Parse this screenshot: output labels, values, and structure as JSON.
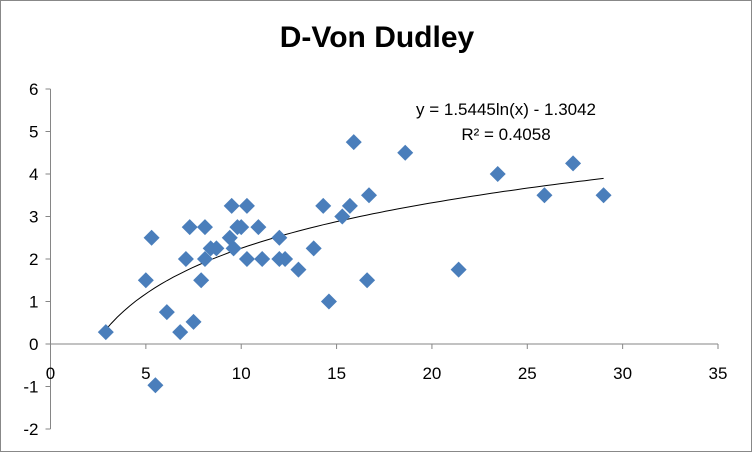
{
  "chart_data": {
    "type": "scatter",
    "title": "D-Von Dudley",
    "xlabel": "",
    "ylabel": "",
    "xlim": [
      0,
      35
    ],
    "ylim": [
      -2,
      6
    ],
    "x_ticks": [
      "0",
      "5",
      "10",
      "15",
      "20",
      "25",
      "30",
      "35"
    ],
    "y_ticks": [
      "-2",
      "-1",
      "0",
      "1",
      "2",
      "3",
      "4",
      "5",
      "6"
    ],
    "grid": false,
    "marker_color": "#4A7EBB",
    "series": [
      {
        "name": "D-Von Dudley",
        "points": [
          [
            2.9,
            0.28
          ],
          [
            5.0,
            1.5
          ],
          [
            5.3,
            2.5
          ],
          [
            5.5,
            -0.97
          ],
          [
            6.1,
            0.75
          ],
          [
            6.8,
            0.28
          ],
          [
            7.1,
            2.0
          ],
          [
            7.3,
            2.75
          ],
          [
            7.5,
            0.52
          ],
          [
            7.9,
            1.5
          ],
          [
            8.1,
            2.0
          ],
          [
            8.1,
            2.75
          ],
          [
            8.4,
            2.25
          ],
          [
            8.7,
            2.25
          ],
          [
            9.5,
            3.25
          ],
          [
            9.4,
            2.5
          ],
          [
            9.6,
            2.25
          ],
          [
            9.8,
            2.75
          ],
          [
            10.0,
            2.75
          ],
          [
            10.3,
            3.25
          ],
          [
            10.3,
            2.0
          ],
          [
            10.9,
            2.75
          ],
          [
            11.1,
            2.0
          ],
          [
            12.0,
            2.5
          ],
          [
            12.0,
            2.0
          ],
          [
            12.3,
            2.0
          ],
          [
            13.0,
            1.75
          ],
          [
            13.8,
            2.25
          ],
          [
            14.3,
            3.25
          ],
          [
            14.6,
            1.0
          ],
          [
            15.3,
            3.0
          ],
          [
            15.7,
            3.25
          ],
          [
            15.9,
            4.75
          ],
          [
            16.6,
            1.5
          ],
          [
            16.7,
            3.5
          ],
          [
            18.6,
            4.5
          ],
          [
            21.4,
            1.75
          ],
          [
            23.45,
            4.0
          ],
          [
            25.9,
            3.5
          ],
          [
            27.4,
            4.25
          ],
          [
            29.0,
            3.5
          ]
        ]
      }
    ],
    "trendline": {
      "type": "logarithmic",
      "a": 1.5445,
      "b": -1.3042,
      "x_range": [
        2.85,
        29.0
      ],
      "equation": "y = 1.5445ln(x) - 1.3042",
      "r_squared": "R² = 0.4058"
    }
  }
}
